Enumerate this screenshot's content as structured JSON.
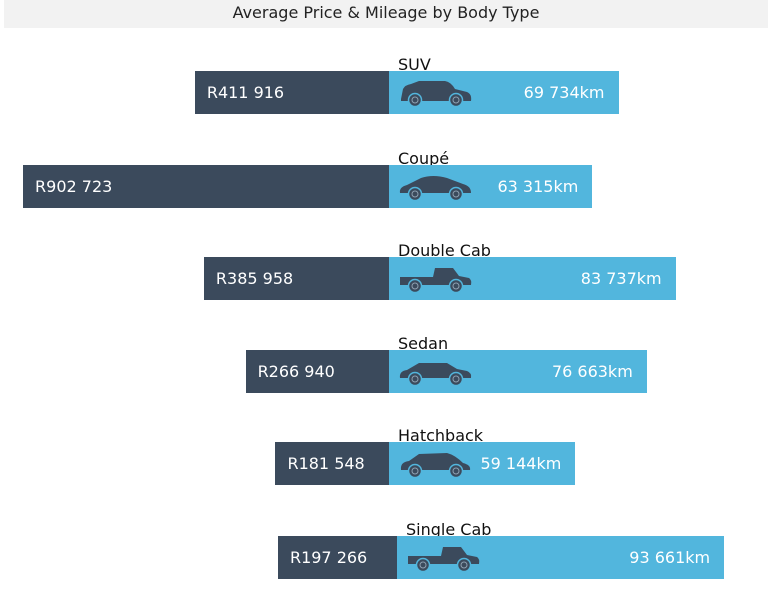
{
  "chart_data": {
    "type": "bar",
    "title": "Average Price & Mileage by Body Type",
    "categories": [
      "SUV",
      "Coupé",
      "Double Cab",
      "Sedan",
      "Hatchback",
      "Single Cab"
    ],
    "series": [
      {
        "name": "Average Price",
        "values": [
          411916,
          902723,
          385958,
          266940,
          181548,
          197266
        ],
        "labels": [
          "R411 916",
          "R902 723",
          "R385 958",
          "R266 940",
          "R181 548",
          "R197 266"
        ],
        "color": "#3b4a5c"
      },
      {
        "name": "Average Mileage",
        "values": [
          69734,
          63315,
          83737,
          76663,
          59144,
          93661
        ],
        "labels": [
          "69 734km",
          "63 315km",
          "83 737km",
          "76 663km",
          "59 144km",
          "93 661km"
        ],
        "color": "#52b6dd"
      }
    ],
    "icons": [
      "suv-icon",
      "coupe-icon",
      "pickup-double-cab-icon",
      "sedan-icon",
      "hatchback-icon",
      "pickup-single-cab-icon"
    ]
  }
}
